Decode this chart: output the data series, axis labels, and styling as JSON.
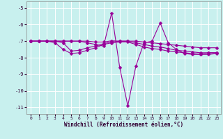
{
  "xlabel": "Windchill (Refroidissement éolien,°C)",
  "xlim": [
    -0.5,
    23.5
  ],
  "ylim": [
    -11.4,
    -4.6
  ],
  "yticks": [
    -11,
    -10,
    -9,
    -8,
    -7,
    -6,
    -5
  ],
  "xticks": [
    0,
    1,
    2,
    3,
    4,
    5,
    6,
    7,
    8,
    9,
    10,
    11,
    12,
    13,
    14,
    15,
    16,
    17,
    18,
    19,
    20,
    21,
    22,
    23
  ],
  "bg_color": "#c8f0ee",
  "grid_color": "#ffffff",
  "line_color": "#990099",
  "line1": [
    -7.0,
    -7.0,
    -7.0,
    -7.0,
    -7.0,
    -7.0,
    -7.0,
    -7.1,
    -7.2,
    -7.3,
    -5.3,
    -8.6,
    -10.9,
    -8.5,
    -7.1,
    -7.0,
    -5.9,
    -7.1,
    -7.5,
    -7.75,
    -7.8,
    -7.8,
    -7.7,
    -7.7
  ],
  "line2": [
    -7.0,
    -7.0,
    -7.0,
    -7.1,
    -7.5,
    -7.75,
    -7.7,
    -7.55,
    -7.4,
    -7.2,
    -7.1,
    -7.05,
    -7.05,
    -7.2,
    -7.35,
    -7.45,
    -7.5,
    -7.6,
    -7.65,
    -7.7,
    -7.75,
    -7.8,
    -7.8,
    -7.75
  ],
  "line3": [
    -7.0,
    -7.0,
    -7.0,
    -7.0,
    -7.1,
    -7.6,
    -7.55,
    -7.4,
    -7.3,
    -7.15,
    -7.05,
    -7.0,
    -7.0,
    -7.1,
    -7.2,
    -7.3,
    -7.35,
    -7.45,
    -7.55,
    -7.6,
    -7.65,
    -7.7,
    -7.7,
    -7.7
  ],
  "line4": [
    -7.0,
    -7.0,
    -7.0,
    -7.0,
    -7.0,
    -7.0,
    -7.0,
    -7.0,
    -7.05,
    -7.05,
    -6.98,
    -7.0,
    -7.0,
    -7.0,
    -7.05,
    -7.1,
    -7.15,
    -7.2,
    -7.25,
    -7.3,
    -7.35,
    -7.4,
    -7.4,
    -7.4
  ]
}
